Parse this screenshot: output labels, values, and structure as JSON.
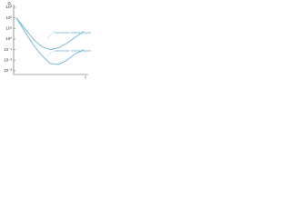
{
  "chart_data": {
    "type": "line",
    "y_label": "Ω",
    "x_label": "f",
    "categories": [
      null,
      null,
      null,
      null,
      null,
      null,
      null,
      null,
      null
    ],
    "series": [
      {
        "name": "Connector shield (figure 11a)",
        "color": "#6fb2d9",
        "values": [
          100,
          10,
          1,
          0.2,
          0.1,
          0.15,
          0.4,
          1.5,
          5
        ]
      },
      {
        "name": "Connector shield (figure 11b)",
        "color": "#6fb2d9",
        "values": [
          100,
          5,
          0.3,
          0.03,
          0.005,
          0.004,
          0.01,
          0.04,
          0.1
        ]
      }
    ],
    "log_y": true,
    "ylim": [
      0.001,
      1000
    ],
    "yticks": [
      {
        "value": 1000,
        "label": "10³"
      },
      {
        "value": 100,
        "label": "10²"
      },
      {
        "value": 10,
        "label": "10¹"
      },
      {
        "value": 1,
        "label": "10⁰"
      },
      {
        "value": 0.1,
        "label": "10⁻¹"
      },
      {
        "value": 0.01,
        "label": "10⁻²"
      },
      {
        "value": 0.001,
        "label": "10⁻³"
      }
    ],
    "grid": false
  }
}
